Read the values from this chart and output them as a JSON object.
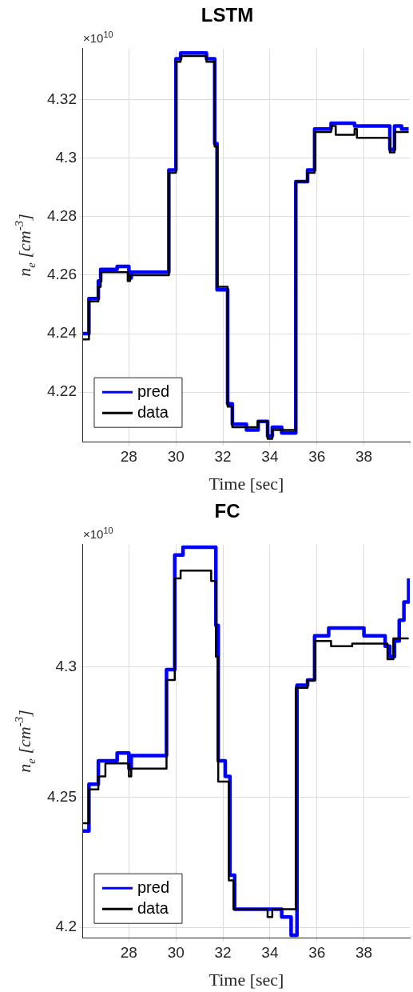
{
  "chart_data": [
    {
      "type": "step",
      "title": "LSTM",
      "xlabel": "Time [sec]",
      "ylabel": "n$_{e}$ [cm$^{-3}$]",
      "annotations": [
        "×10$^{10}$"
      ],
      "xlim": [
        26.05,
        39.95
      ],
      "xticks": [
        28,
        30,
        32,
        34,
        36,
        38
      ],
      "ylim": [
        4.203,
        4.3375
      ],
      "yticks": [
        4.22,
        4.24,
        4.26,
        4.28,
        4.3,
        4.32
      ],
      "grid": true,
      "legend": "bottom left",
      "series": [
        {
          "name": "pred",
          "color": "#0000ff",
          "x": [
            26.05,
            26.3,
            26.7,
            26.8,
            27.5,
            28.0,
            28.1,
            29.7,
            30.0,
            30.2,
            31.3,
            31.65,
            31.75,
            32.2,
            32.4,
            33.0,
            33.5,
            33.9,
            34.1,
            34.5,
            35.1,
            35.6,
            35.9,
            36.6,
            37.6,
            39.1,
            39.3,
            39.6,
            39.9
          ],
          "values": [
            4.24,
            4.252,
            4.258,
            4.262,
            4.263,
            4.259,
            4.261,
            4.296,
            4.334,
            4.336,
            4.334,
            4.305,
            4.255,
            4.216,
            4.209,
            4.207,
            4.21,
            4.205,
            4.208,
            4.206,
            4.292,
            4.296,
            4.31,
            4.312,
            4.311,
            4.303,
            4.311,
            4.31,
            4.31
          ]
        },
        {
          "name": "data",
          "color": "#000000",
          "x": [
            26.05,
            26.3,
            26.7,
            26.8,
            27.95,
            28.05,
            29.7,
            30.0,
            30.2,
            31.3,
            31.65,
            31.75,
            32.2,
            32.4,
            33.5,
            33.9,
            34.1,
            35.1,
            35.6,
            35.9,
            36.6,
            36.8,
            37.6,
            37.7,
            39.1,
            39.3,
            39.9
          ],
          "values": [
            4.238,
            4.251,
            4.256,
            4.261,
            4.258,
            4.26,
            4.295,
            4.333,
            4.335,
            4.333,
            4.304,
            4.256,
            4.215,
            4.208,
            4.21,
            4.204,
            4.207,
            4.292,
            4.295,
            4.309,
            4.311,
            4.308,
            4.31,
            4.307,
            4.302,
            4.309,
            4.309
          ]
        }
      ]
    },
    {
      "type": "step",
      "title": "FC",
      "xlabel": "Time [sec]",
      "ylabel": "n$_{e}$ [cm$^{-3}$]",
      "annotations": [
        "×10$^{10}$"
      ],
      "xlim": [
        26.05,
        39.95
      ],
      "xticks": [
        28,
        30,
        32,
        34,
        36,
        38
      ],
      "ylim": [
        4.196,
        4.347
      ],
      "yticks": [
        4.2,
        4.25,
        4.3
      ],
      "grid": true,
      "legend": "bottom left",
      "series": [
        {
          "name": "pred",
          "color": "#0000ff",
          "x": [
            26.05,
            26.3,
            26.7,
            27.5,
            28.0,
            28.1,
            29.6,
            29.95,
            30.3,
            31.7,
            31.8,
            32.1,
            32.3,
            32.5,
            34.5,
            34.9,
            35.15,
            35.6,
            35.9,
            36.5,
            38.0,
            38.9,
            39.1,
            39.3,
            39.5,
            39.7,
            39.9
          ],
          "values": [
            4.237,
            4.255,
            4.264,
            4.267,
            4.261,
            4.266,
            4.299,
            4.343,
            4.346,
            4.316,
            4.264,
            4.258,
            4.22,
            4.207,
            4.204,
            4.197,
            4.293,
            4.295,
            4.312,
            4.315,
            4.312,
            4.308,
            4.304,
            4.31,
            4.318,
            4.325,
            4.334
          ]
        },
        {
          "name": "data",
          "color": "#000000",
          "x": [
            26.05,
            26.3,
            26.7,
            27.0,
            28.0,
            28.1,
            29.6,
            29.95,
            30.2,
            31.5,
            31.7,
            31.8,
            32.25,
            32.45,
            33.9,
            34.1,
            35.1,
            35.6,
            35.9,
            36.6,
            37.5,
            39.0,
            39.25,
            39.9
          ],
          "values": [
            4.24,
            4.253,
            4.258,
            4.263,
            4.258,
            4.261,
            4.295,
            4.334,
            4.337,
            4.333,
            4.304,
            4.256,
            4.218,
            4.207,
            4.204,
            4.207,
            4.292,
            4.295,
            4.31,
            4.308,
            4.309,
            4.303,
            4.311,
            4.311
          ]
        }
      ]
    }
  ]
}
